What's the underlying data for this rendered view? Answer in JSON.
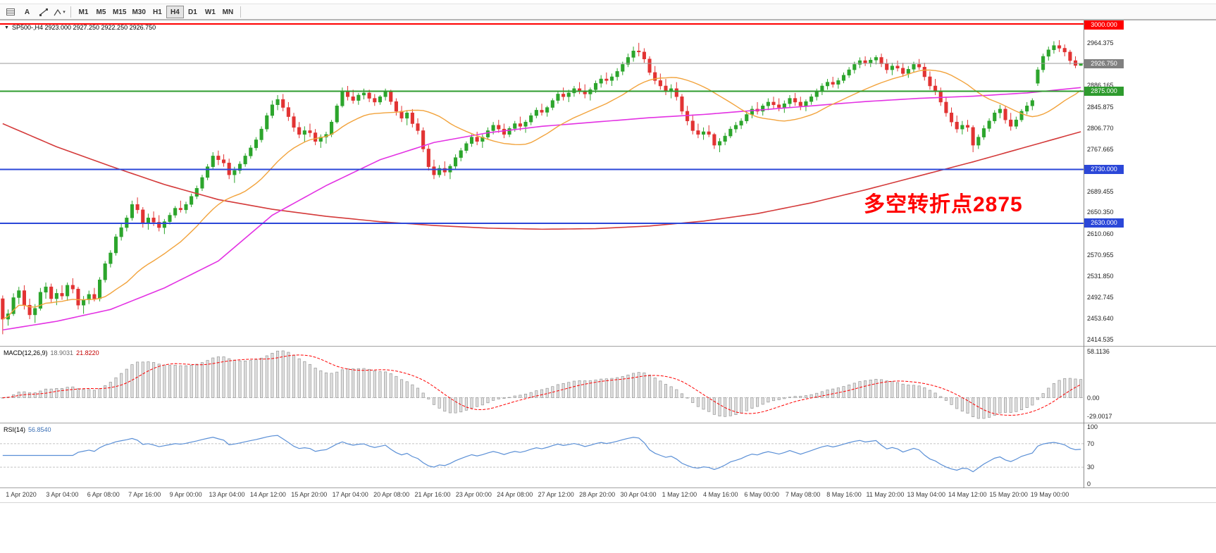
{
  "toolbar": {
    "label_a": "A",
    "timeframes": [
      "M1",
      "M5",
      "M15",
      "M30",
      "H1",
      "H4",
      "D1",
      "W1",
      "MN"
    ],
    "active_timeframe": "H4"
  },
  "symbol_bar": {
    "label": "SP500-,H4 2923.000 2927.250 2922.250 2926.750"
  },
  "annotation": {
    "text": "多空转折点2875",
    "color": "#ff0000"
  },
  "price_axis": {
    "ticks": [
      "2964.375",
      "2886.165",
      "2845.875",
      "2806.770",
      "2767.665",
      "2689.455",
      "2650.350",
      "2610.060",
      "2570.955",
      "2531.850",
      "2492.745",
      "2453.640",
      "2414.535"
    ]
  },
  "price_levels": [
    {
      "label": "3000.000",
      "price": 3000.0,
      "color": "#ff0000",
      "width": 2
    },
    {
      "label": "2875.000",
      "price": 2875.0,
      "color": "#2e9b2e",
      "width": 2
    },
    {
      "label": "2730.000",
      "price": 2730.0,
      "color": "#2b47d8",
      "width": 2
    },
    {
      "label": "2630.000",
      "price": 2630.0,
      "color": "#2b47d8",
      "width": 2
    }
  ],
  "current_price": {
    "label": "2926.750",
    "price": 2926.75,
    "color": "#808080",
    "line_color": "#999999"
  },
  "macd_panel": {
    "label": "MACD(12,26,9)",
    "value1": "18.9031",
    "value2": "21.8220",
    "axis_max": "58.1136",
    "axis_zero": "0.00",
    "axis_min": "-29.0017"
  },
  "rsi_panel": {
    "label": "RSI(14)",
    "value": "56.8540",
    "axis": [
      {
        "label": "100",
        "value": 100
      },
      {
        "label": "70",
        "value": 70
      },
      {
        "label": "30",
        "value": 30
      },
      {
        "label": "0",
        "value": 0
      }
    ],
    "levels": [
      70,
      30
    ]
  },
  "time_axis": {
    "labels": [
      "1 Apr 2020",
      "3 Apr 04:00",
      "6 Apr 08:00",
      "7 Apr 16:00",
      "9 Apr 00:00",
      "13 Apr 04:00",
      "14 Apr 12:00",
      "15 Apr 20:00",
      "17 Apr 04:00",
      "20 Apr 08:00",
      "21 Apr 16:00",
      "23 Apr 00:00",
      "24 Apr 08:00",
      "27 Apr 12:00",
      "28 Apr 20:00",
      "30 Apr 04:00",
      "1 May 12:00",
      "4 May 16:00",
      "6 May 00:00",
      "7 May 08:00",
      "8 May 16:00",
      "11 May 20:00",
      "13 May 04:00",
      "14 May 12:00",
      "15 May 20:00",
      "19 May 00:00"
    ]
  },
  "chart_data": {
    "type": "candlestick",
    "symbol": "SP500-",
    "period": "H4",
    "price_min": 2405,
    "price_max": 3004,
    "indicators": {
      "macd": [
        12,
        26,
        9
      ],
      "rsi": 14,
      "ma_fast_period": 20
    },
    "colors": {
      "up": "#2ca52c",
      "down": "#e23333",
      "ma_fast": "#f2a33c",
      "ma_mid": "#e332e3",
      "ma_slow": "#d43a3a",
      "macd_hist_fill": "#e0e0e0",
      "macd_hist_stroke": "#979797",
      "macd_signal": "#ff0000",
      "rsi": "#5a8fd6"
    },
    "candles": [
      [
        2490,
        2496,
        2424,
        2452
      ],
      [
        2452,
        2470,
        2440,
        2462
      ],
      [
        2462,
        2500,
        2458,
        2492
      ],
      [
        2492,
        2512,
        2480,
        2505
      ],
      [
        2505,
        2515,
        2470,
        2478
      ],
      [
        2478,
        2490,
        2452,
        2460
      ],
      [
        2460,
        2480,
        2445,
        2472
      ],
      [
        2472,
        2510,
        2468,
        2502
      ],
      [
        2502,
        2520,
        2490,
        2512
      ],
      [
        2512,
        2518,
        2482,
        2490
      ],
      [
        2490,
        2508,
        2478,
        2500
      ],
      [
        2500,
        2515,
        2488,
        2495
      ],
      [
        2495,
        2520,
        2486,
        2515
      ],
      [
        2515,
        2528,
        2500,
        2508
      ],
      [
        2508,
        2512,
        2470,
        2478
      ],
      [
        2478,
        2495,
        2462,
        2488
      ],
      [
        2488,
        2505,
        2480,
        2498
      ],
      [
        2498,
        2510,
        2485,
        2490
      ],
      [
        2490,
        2530,
        2485,
        2525
      ],
      [
        2525,
        2560,
        2520,
        2555
      ],
      [
        2555,
        2580,
        2548,
        2575
      ],
      [
        2575,
        2610,
        2570,
        2605
      ],
      [
        2605,
        2630,
        2598,
        2622
      ],
      [
        2622,
        2645,
        2615,
        2640
      ],
      [
        2640,
        2672,
        2635,
        2665
      ],
      [
        2665,
        2678,
        2648,
        2655
      ],
      [
        2655,
        2660,
        2622,
        2630
      ],
      [
        2630,
        2648,
        2618,
        2640
      ],
      [
        2640,
        2652,
        2625,
        2632
      ],
      [
        2632,
        2645,
        2615,
        2622
      ],
      [
        2622,
        2638,
        2610,
        2633
      ],
      [
        2633,
        2650,
        2628,
        2645
      ],
      [
        2645,
        2662,
        2640,
        2658
      ],
      [
        2658,
        2672,
        2650,
        2655
      ],
      [
        2655,
        2670,
        2648,
        2665
      ],
      [
        2665,
        2685,
        2660,
        2680
      ],
      [
        2680,
        2700,
        2675,
        2695
      ],
      [
        2695,
        2720,
        2690,
        2715
      ],
      [
        2715,
        2740,
        2710,
        2735
      ],
      [
        2735,
        2762,
        2730,
        2755
      ],
      [
        2755,
        2765,
        2738,
        2748
      ],
      [
        2748,
        2758,
        2735,
        2742
      ],
      [
        2742,
        2750,
        2712,
        2720
      ],
      [
        2720,
        2735,
        2705,
        2728
      ],
      [
        2728,
        2745,
        2722,
        2740
      ],
      [
        2740,
        2760,
        2735,
        2755
      ],
      [
        2755,
        2775,
        2750,
        2770
      ],
      [
        2770,
        2790,
        2765,
        2785
      ],
      [
        2785,
        2810,
        2780,
        2805
      ],
      [
        2805,
        2835,
        2800,
        2830
      ],
      [
        2830,
        2858,
        2825,
        2850
      ],
      [
        2850,
        2868,
        2840,
        2860
      ],
      [
        2860,
        2870,
        2838,
        2845
      ],
      [
        2845,
        2855,
        2820,
        2828
      ],
      [
        2828,
        2835,
        2800,
        2808
      ],
      [
        2808,
        2818,
        2788,
        2795
      ],
      [
        2795,
        2810,
        2780,
        2802
      ],
      [
        2802,
        2815,
        2790,
        2798
      ],
      [
        2798,
        2805,
        2775,
        2782
      ],
      [
        2782,
        2795,
        2770,
        2790
      ],
      [
        2790,
        2800,
        2778,
        2795
      ],
      [
        2795,
        2822,
        2790,
        2818
      ],
      [
        2818,
        2852,
        2815,
        2848
      ],
      [
        2848,
        2882,
        2845,
        2875
      ],
      [
        2875,
        2885,
        2858,
        2865
      ],
      [
        2865,
        2878,
        2852,
        2858
      ],
      [
        2858,
        2872,
        2850,
        2868
      ],
      [
        2868,
        2880,
        2860,
        2872
      ],
      [
        2872,
        2878,
        2855,
        2862
      ],
      [
        2862,
        2870,
        2848,
        2855
      ],
      [
        2855,
        2868,
        2850,
        2865
      ],
      [
        2865,
        2880,
        2858,
        2875
      ],
      [
        2875,
        2878,
        2850,
        2856
      ],
      [
        2856,
        2862,
        2830,
        2838
      ],
      [
        2838,
        2848,
        2818,
        2825
      ],
      [
        2825,
        2840,
        2812,
        2835
      ],
      [
        2835,
        2842,
        2808,
        2815
      ],
      [
        2815,
        2825,
        2795,
        2802
      ],
      [
        2802,
        2808,
        2762,
        2768
      ],
      [
        2768,
        2775,
        2728,
        2735
      ],
      [
        2735,
        2748,
        2712,
        2720
      ],
      [
        2720,
        2738,
        2715,
        2732
      ],
      [
        2732,
        2745,
        2718,
        2725
      ],
      [
        2725,
        2740,
        2712,
        2736
      ],
      [
        2736,
        2758,
        2730,
        2752
      ],
      [
        2752,
        2770,
        2745,
        2765
      ],
      [
        2765,
        2782,
        2760,
        2778
      ],
      [
        2778,
        2795,
        2772,
        2790
      ],
      [
        2790,
        2800,
        2775,
        2782
      ],
      [
        2782,
        2795,
        2770,
        2790
      ],
      [
        2790,
        2808,
        2785,
        2802
      ],
      [
        2802,
        2818,
        2795,
        2812
      ],
      [
        2812,
        2822,
        2798,
        2805
      ],
      [
        2805,
        2815,
        2788,
        2795
      ],
      [
        2795,
        2810,
        2790,
        2806
      ],
      [
        2806,
        2820,
        2800,
        2815
      ],
      [
        2815,
        2828,
        2802,
        2810
      ],
      [
        2810,
        2822,
        2798,
        2818
      ],
      [
        2818,
        2835,
        2812,
        2830
      ],
      [
        2830,
        2845,
        2825,
        2840
      ],
      [
        2840,
        2852,
        2830,
        2836
      ],
      [
        2836,
        2848,
        2828,
        2845
      ],
      [
        2845,
        2862,
        2840,
        2858
      ],
      [
        2858,
        2875,
        2852,
        2870
      ],
      [
        2870,
        2882,
        2858,
        2865
      ],
      [
        2865,
        2878,
        2855,
        2872
      ],
      [
        2872,
        2885,
        2865,
        2880
      ],
      [
        2880,
        2892,
        2870,
        2876
      ],
      [
        2876,
        2888,
        2862,
        2870
      ],
      [
        2870,
        2882,
        2858,
        2878
      ],
      [
        2878,
        2895,
        2872,
        2890
      ],
      [
        2890,
        2905,
        2882,
        2898
      ],
      [
        2898,
        2910,
        2888,
        2895
      ],
      [
        2895,
        2908,
        2885,
        2902
      ],
      [
        2902,
        2918,
        2895,
        2912
      ],
      [
        2912,
        2930,
        2905,
        2925
      ],
      [
        2925,
        2945,
        2920,
        2938
      ],
      [
        2938,
        2958,
        2930,
        2950
      ],
      [
        2950,
        2965,
        2940,
        2948
      ],
      [
        2948,
        2955,
        2928,
        2935
      ],
      [
        2935,
        2940,
        2905,
        2910
      ],
      [
        2910,
        2922,
        2888,
        2895
      ],
      [
        2895,
        2908,
        2878,
        2885
      ],
      [
        2885,
        2898,
        2868,
        2875
      ],
      [
        2875,
        2888,
        2862,
        2880
      ],
      [
        2880,
        2892,
        2858,
        2865
      ],
      [
        2865,
        2870,
        2832,
        2838
      ],
      [
        2838,
        2848,
        2812,
        2820
      ],
      [
        2820,
        2832,
        2795,
        2802
      ],
      [
        2802,
        2815,
        2788,
        2795
      ],
      [
        2795,
        2808,
        2785,
        2800
      ],
      [
        2800,
        2812,
        2790,
        2795
      ],
      [
        2795,
        2798,
        2768,
        2775
      ],
      [
        2775,
        2788,
        2762,
        2782
      ],
      [
        2782,
        2798,
        2775,
        2792
      ],
      [
        2792,
        2810,
        2788,
        2805
      ],
      [
        2805,
        2818,
        2798,
        2812
      ],
      [
        2812,
        2825,
        2805,
        2820
      ],
      [
        2820,
        2838,
        2815,
        2832
      ],
      [
        2832,
        2848,
        2825,
        2842
      ],
      [
        2842,
        2855,
        2832,
        2838
      ],
      [
        2838,
        2852,
        2830,
        2848
      ],
      [
        2848,
        2862,
        2840,
        2855
      ],
      [
        2855,
        2865,
        2842,
        2850
      ],
      [
        2850,
        2862,
        2838,
        2845
      ],
      [
        2845,
        2858,
        2835,
        2852
      ],
      [
        2852,
        2868,
        2845,
        2862
      ],
      [
        2862,
        2872,
        2848,
        2855
      ],
      [
        2855,
        2865,
        2840,
        2848
      ],
      [
        2848,
        2860,
        2838,
        2856
      ],
      [
        2856,
        2870,
        2850,
        2865
      ],
      [
        2865,
        2880,
        2858,
        2875
      ],
      [
        2875,
        2890,
        2868,
        2885
      ],
      [
        2885,
        2898,
        2878,
        2892
      ],
      [
        2892,
        2902,
        2882,
        2888
      ],
      [
        2888,
        2900,
        2880,
        2895
      ],
      [
        2895,
        2910,
        2890,
        2905
      ],
      [
        2905,
        2920,
        2900,
        2915
      ],
      [
        2915,
        2930,
        2908,
        2925
      ],
      [
        2925,
        2938,
        2918,
        2932
      ],
      [
        2932,
        2940,
        2922,
        2928
      ],
      [
        2928,
        2938,
        2920,
        2933
      ],
      [
        2933,
        2942,
        2925,
        2938
      ],
      [
        2938,
        2945,
        2920,
        2926
      ],
      [
        2926,
        2935,
        2908,
        2915
      ],
      [
        2915,
        2928,
        2905,
        2922
      ],
      [
        2922,
        2932,
        2912,
        2918
      ],
      [
        2918,
        2928,
        2902,
        2908
      ],
      [
        2908,
        2922,
        2900,
        2916
      ],
      [
        2916,
        2930,
        2910,
        2925
      ],
      [
        2925,
        2935,
        2915,
        2920
      ],
      [
        2920,
        2928,
        2895,
        2902
      ],
      [
        2902,
        2912,
        2878,
        2885
      ],
      [
        2885,
        2898,
        2868,
        2875
      ],
      [
        2875,
        2882,
        2848,
        2855
      ],
      [
        2855,
        2865,
        2828,
        2835
      ],
      [
        2835,
        2845,
        2810,
        2818
      ],
      [
        2818,
        2830,
        2798,
        2805
      ],
      [
        2805,
        2820,
        2795,
        2812
      ],
      [
        2812,
        2822,
        2800,
        2808
      ],
      [
        2808,
        2812,
        2762,
        2775
      ],
      [
        2775,
        2795,
        2768,
        2790
      ],
      [
        2790,
        2812,
        2785,
        2806
      ],
      [
        2806,
        2825,
        2800,
        2820
      ],
      [
        2820,
        2840,
        2815,
        2835
      ],
      [
        2835,
        2850,
        2825,
        2842
      ],
      [
        2842,
        2848,
        2815,
        2822
      ],
      [
        2822,
        2835,
        2802,
        2810
      ],
      [
        2810,
        2828,
        2805,
        2822
      ],
      [
        2822,
        2842,
        2818,
        2838
      ],
      [
        2838,
        2855,
        2832,
        2848
      ],
      [
        2848,
        2862,
        2840,
        2858
      ],
      [
        2890,
        2920,
        2885,
        2915
      ],
      [
        2915,
        2945,
        2910,
        2940
      ],
      [
        2940,
        2958,
        2932,
        2952
      ],
      [
        2952,
        2968,
        2945,
        2960
      ],
      [
        2960,
        2970,
        2948,
        2955
      ],
      [
        2955,
        2962,
        2940,
        2948
      ],
      [
        2948,
        2952,
        2925,
        2932
      ],
      [
        2932,
        2940,
        2918,
        2923
      ],
      [
        2923,
        2927.25,
        2922.25,
        2926.75
      ]
    ],
    "ma_mid_anchors": [
      [
        0,
        2432
      ],
      [
        10,
        2448
      ],
      [
        20,
        2470
      ],
      [
        30,
        2510
      ],
      [
        40,
        2560
      ],
      [
        50,
        2645
      ],
      [
        60,
        2700
      ],
      [
        70,
        2748
      ],
      [
        80,
        2780
      ],
      [
        90,
        2798
      ],
      [
        100,
        2810
      ],
      [
        110,
        2818
      ],
      [
        120,
        2826
      ],
      [
        130,
        2832
      ],
      [
        140,
        2840
      ],
      [
        150,
        2848
      ],
      [
        160,
        2856
      ],
      [
        170,
        2862
      ],
      [
        180,
        2866
      ],
      [
        190,
        2872
      ],
      [
        200,
        2882
      ]
    ],
    "ma_slow_anchors": [
      [
        0,
        2815
      ],
      [
        10,
        2772
      ],
      [
        20,
        2736
      ],
      [
        30,
        2702
      ],
      [
        40,
        2674
      ],
      [
        50,
        2656
      ],
      [
        60,
        2643
      ],
      [
        70,
        2633
      ],
      [
        80,
        2626
      ],
      [
        90,
        2621
      ],
      [
        100,
        2619
      ],
      [
        110,
        2620
      ],
      [
        120,
        2625
      ],
      [
        130,
        2634
      ],
      [
        140,
        2648
      ],
      [
        150,
        2668
      ],
      [
        160,
        2692
      ],
      [
        170,
        2718
      ],
      [
        180,
        2744
      ],
      [
        190,
        2772
      ],
      [
        200,
        2800
      ]
    ]
  }
}
